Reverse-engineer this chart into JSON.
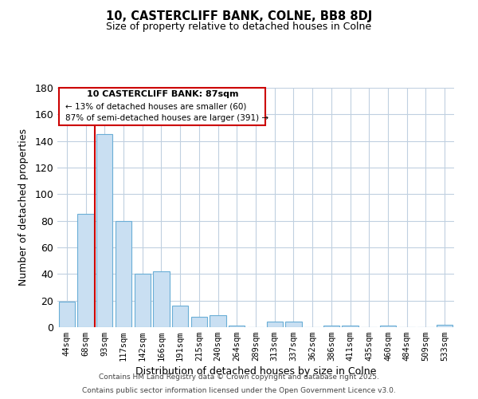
{
  "title_line1": "10, CASTERCLIFF BANK, COLNE, BB8 8DJ",
  "title_line2": "Size of property relative to detached houses in Colne",
  "xlabel": "Distribution of detached houses by size in Colne",
  "ylabel": "Number of detached properties",
  "categories": [
    "44sqm",
    "68sqm",
    "93sqm",
    "117sqm",
    "142sqm",
    "166sqm",
    "191sqm",
    "215sqm",
    "240sqm",
    "264sqm",
    "289sqm",
    "313sqm",
    "337sqm",
    "362sqm",
    "386sqm",
    "411sqm",
    "435sqm",
    "460sqm",
    "484sqm",
    "509sqm",
    "533sqm"
  ],
  "values": [
    19,
    85,
    145,
    80,
    40,
    42,
    16,
    8,
    9,
    1,
    0,
    4,
    4,
    0,
    1,
    1,
    0,
    1,
    0,
    0,
    2
  ],
  "bar_color": "#c9dff2",
  "bar_edge_color": "#6aaed6",
  "vline_color": "#cc0000",
  "ylim": [
    0,
    180
  ],
  "yticks": [
    0,
    20,
    40,
    60,
    80,
    100,
    120,
    140,
    160,
    180
  ],
  "annotation_text_line1": "10 CASTERCLIFF BANK: 87sqm",
  "annotation_text_line2": "← 13% of detached houses are smaller (60)",
  "annotation_text_line3": "87% of semi-detached houses are larger (391) →",
  "footer_line1": "Contains HM Land Registry data © Crown copyright and database right 2025.",
  "footer_line2": "Contains public sector information licensed under the Open Government Licence v3.0.",
  "background_color": "#ffffff",
  "grid_color": "#c0d0e0"
}
